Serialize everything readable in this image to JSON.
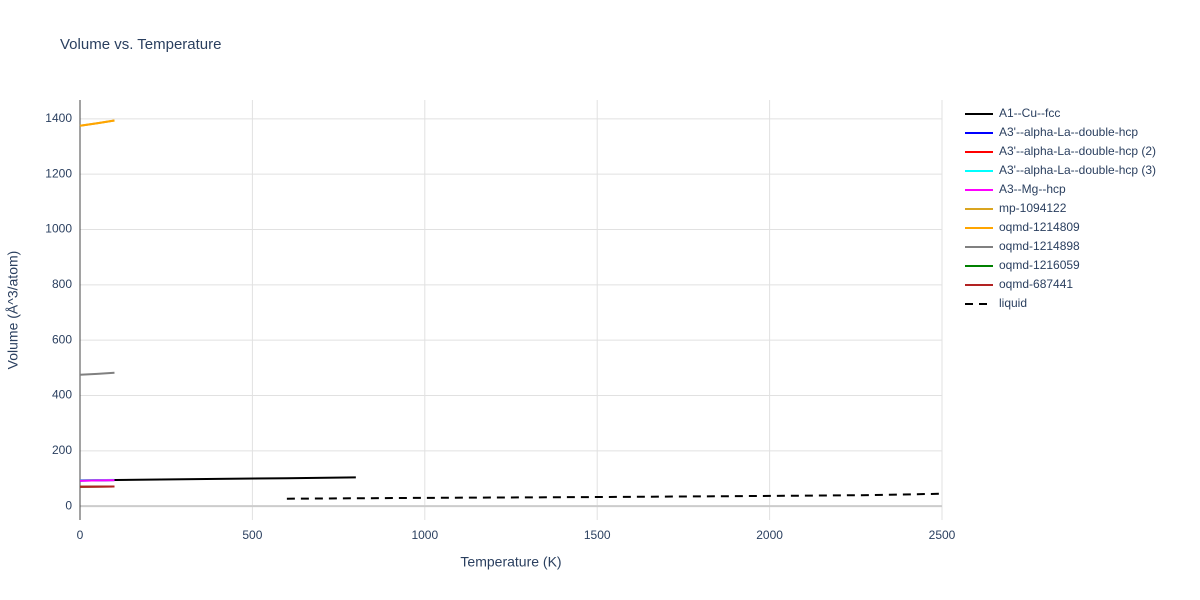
{
  "chart_data": {
    "type": "line",
    "title": "Volume vs. Temperature",
    "x_label": "Temperature (K)",
    "y_label": "Volume (Å^3/atom)",
    "xlim": [
      0,
      2500
    ],
    "ylim": [
      -50,
      1468
    ],
    "xticks": [
      0,
      500,
      1000,
      1500,
      2000,
      2500
    ],
    "yticks": [
      0,
      200,
      400,
      600,
      800,
      1000,
      1200,
      1400
    ],
    "grid": true,
    "legend": "right",
    "series": [
      {
        "name": "A1--Cu--fcc",
        "color": "#000000",
        "x": [
          0,
          200,
          400,
          600,
          800
        ],
        "values": [
          93,
          96,
          98.5,
          101,
          104
        ]
      },
      {
        "name": "A3'--alpha-La--double-hcp",
        "color": "#0000ff",
        "x": [
          0,
          50,
          100
        ],
        "values": [
          92,
          93,
          94
        ]
      },
      {
        "name": "A3'--alpha-La--double-hcp (2)",
        "color": "#ff0000",
        "x": [
          0,
          50,
          100
        ],
        "values": [
          70,
          70.5,
          71
        ]
      },
      {
        "name": "A3'--alpha-La--double-hcp (3)",
        "color": "#00ffff",
        "x": [
          0,
          50,
          100
        ],
        "values": [
          93,
          94,
          95
        ]
      },
      {
        "name": "A3--Mg--hcp",
        "color": "#ff00ff",
        "x": [
          0,
          50,
          100
        ],
        "values": [
          92,
          93,
          94
        ]
      },
      {
        "name": "mp-1094122",
        "color": "#daa520",
        "x": [
          0,
          50,
          100
        ],
        "values": [
          1375,
          1384,
          1394
        ]
      },
      {
        "name": "oqmd-1214809",
        "color": "#ffa500",
        "x": [
          0,
          50,
          100
        ],
        "values": [
          1375,
          1384,
          1394
        ]
      },
      {
        "name": "oqmd-1214898",
        "color": "#808080",
        "x": [
          0,
          50,
          100
        ],
        "values": [
          475,
          478,
          482
        ]
      },
      {
        "name": "oqmd-1216059",
        "color": "#008000",
        "x": [
          0,
          50,
          100
        ],
        "values": [
          70,
          70.5,
          71
        ]
      },
      {
        "name": "oqmd-687441",
        "color": "#b22222",
        "x": [
          0,
          50,
          100
        ],
        "values": [
          70,
          70.5,
          71
        ]
      },
      {
        "name": "liquid",
        "color": "#000000",
        "dash": "dash",
        "x": [
          600,
          1000,
          1500,
          2000,
          2300,
          2500
        ],
        "values": [
          27,
          30,
          33,
          37,
          40,
          45
        ]
      }
    ]
  }
}
